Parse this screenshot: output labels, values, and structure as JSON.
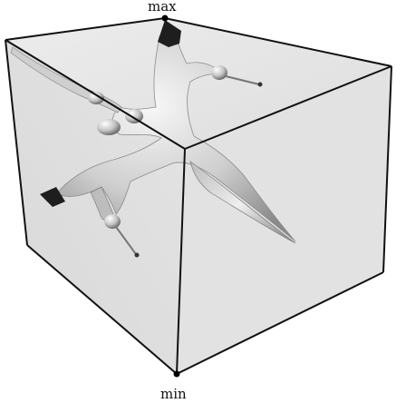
{
  "figure": {
    "labels": {
      "max": "max",
      "min": "min"
    },
    "colors": {
      "box_edge": "#111111",
      "box_face": "#e8e8e8",
      "box_face_shadow": "#dcdcdc",
      "surface_light": "#f2f2f2",
      "surface_mid": "#c8c8c8",
      "surface_dark": "#7a7a7a",
      "critical_point": "#000000"
    }
  }
}
